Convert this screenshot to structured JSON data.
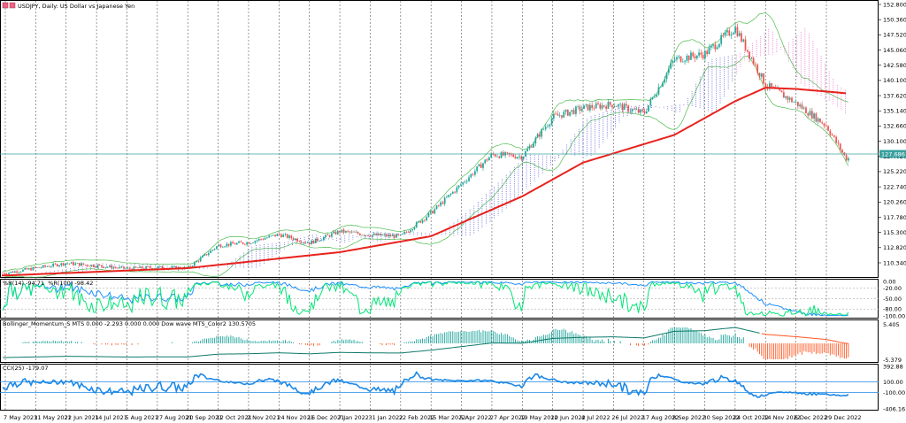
{
  "title": {
    "symbol_label": "USDJPY, Daily: US Dollar vs Japanese Yen",
    "icons": [
      "window-icon",
      "window-icon"
    ]
  },
  "colors": {
    "bull": "#26a69a",
    "bear": "#ef5350",
    "ma_red": "#e8231e",
    "cloud_blue": "#3030d0",
    "cloud_pink": "#e040c0",
    "bands": "#4cbb4c",
    "wpr_fast": "#00e676",
    "wpr_slow": "#1e90ff",
    "histo_up": "#1aa39a",
    "histo_down": "#ff5722",
    "signal_line": "#0d7a6a",
    "cci_line": "#1e88e5",
    "price_line": "#3aa0a0",
    "grid": "#000000"
  },
  "main_panel": {
    "price_ticks": [
      "152.800",
      "150.360",
      "147.520",
      "145.060",
      "142.580",
      "140.100",
      "137.620",
      "135.140",
      "132.660",
      "130.100",
      "127.620",
      "125.220",
      "122.740",
      "120.260",
      "117.780",
      "115.300",
      "112.820",
      "110.340"
    ],
    "current_price": "127.686"
  },
  "wpr_panel": {
    "label": "%R(14) -94.71  %R(100) -98.42",
    "ticks": [
      "0.00",
      "-20.00",
      "-50.00",
      "-80.00",
      "-100.00"
    ]
  },
  "momentum_panel": {
    "label": "Bollinger_Momentum_S MTS 0.000 -2.293 0.000 0.000 Dow wave MTS_Color2 130.5705",
    "ticks": [
      "5.405",
      "-5.379"
    ]
  },
  "cci_panel": {
    "label": "CCI(25) -179.07",
    "ticks": [
      "392.88",
      "100.00",
      "-100.00",
      "-406.16"
    ]
  },
  "time_axis": [
    "7 May 2021",
    "31 May 2021",
    "22 Jun 2021",
    "14 Jul 2021",
    "5 Aug 2021",
    "27 Aug 2021",
    "20 Sep 2021",
    "12 Oct 2021",
    "2 Nov 2021",
    "24 Nov 2021",
    "16 Dec 2021",
    "7 Jan 2022",
    "31 Jan 2022",
    "22 Feb 2022",
    "15 Mar 2022",
    "5 Apr 2022",
    "27 Apr 2022",
    "19 May 2022",
    "10 Jun 2022",
    "4 Jul 2022",
    "26 Jul 2022",
    "17 Aug 2022",
    "8 Sep 2022",
    "30 Sep 2022",
    "24 Oct 2022",
    "14 Nov 2022",
    "6 Dec 2022",
    "29 Dec 2022"
  ],
  "chart_data": {
    "type": "candlestick",
    "symbol": "USDJPY",
    "timeframe": "Daily",
    "ylim": [
      108.5,
      153.2
    ],
    "price_anchors": [
      {
        "x": "7 May 2021",
        "close": 109.0
      },
      {
        "x": "31 May 2021",
        "close": 109.8
      },
      {
        "x": "22 Jun 2021",
        "close": 110.6
      },
      {
        "x": "14 Jul 2021",
        "close": 110.2
      },
      {
        "x": "5 Aug 2021",
        "close": 109.7
      },
      {
        "x": "27 Aug 2021",
        "close": 109.9
      },
      {
        "x": "20 Sep 2021",
        "close": 109.8
      },
      {
        "x": "12 Oct 2021",
        "close": 113.5
      },
      {
        "x": "2 Nov 2021",
        "close": 114.0
      },
      {
        "x": "24 Nov 2021",
        "close": 115.3
      },
      {
        "x": "16 Dec 2021",
        "close": 113.9
      },
      {
        "x": "7 Jan 2022",
        "close": 115.8
      },
      {
        "x": "31 Jan 2022",
        "close": 115.2
      },
      {
        "x": "22 Feb 2022",
        "close": 115.0
      },
      {
        "x": "15 Mar 2022",
        "close": 118.8
      },
      {
        "x": "5 Apr 2022",
        "close": 123.5
      },
      {
        "x": "27 Apr 2022",
        "close": 128.3
      },
      {
        "x": "19 May 2022",
        "close": 128.0
      },
      {
        "x": "10 Jun 2022",
        "close": 134.4
      },
      {
        "x": "4 Jul 2022",
        "close": 135.9
      },
      {
        "x": "26 Jul 2022",
        "close": 136.5
      },
      {
        "x": "17 Aug 2022",
        "close": 135.0
      },
      {
        "x": "8 Sep 2022",
        "close": 143.8
      },
      {
        "x": "30 Sep 2022",
        "close": 144.7
      },
      {
        "x": "24 Oct 2022",
        "close": 149.0
      },
      {
        "x": "14 Nov 2022",
        "close": 139.7
      },
      {
        "x": "6 Dec 2022",
        "close": 136.7
      },
      {
        "x": "29 Dec 2022",
        "close": 133.0
      },
      {
        "x": "end",
        "close": 127.7
      }
    ],
    "ma200_anchors": [
      {
        "x": "7 May 2021",
        "value": 108.6
      },
      {
        "x": "20 Sep 2021",
        "value": 109.8
      },
      {
        "x": "7 Jan 2022",
        "value": 112.4
      },
      {
        "x": "15 Mar 2022",
        "value": 115.0
      },
      {
        "x": "19 May 2022",
        "value": 121.5
      },
      {
        "x": "4 Jul 2022",
        "value": 127.0
      },
      {
        "x": "8 Sep 2022",
        "value": 131.5
      },
      {
        "x": "24 Oct 2022",
        "value": 137.0
      },
      {
        "x": "14 Nov 2022",
        "value": 139.2
      },
      {
        "x": "6 Dec 2022",
        "value": 139.0
      },
      {
        "x": "end",
        "value": 138.3
      }
    ]
  }
}
